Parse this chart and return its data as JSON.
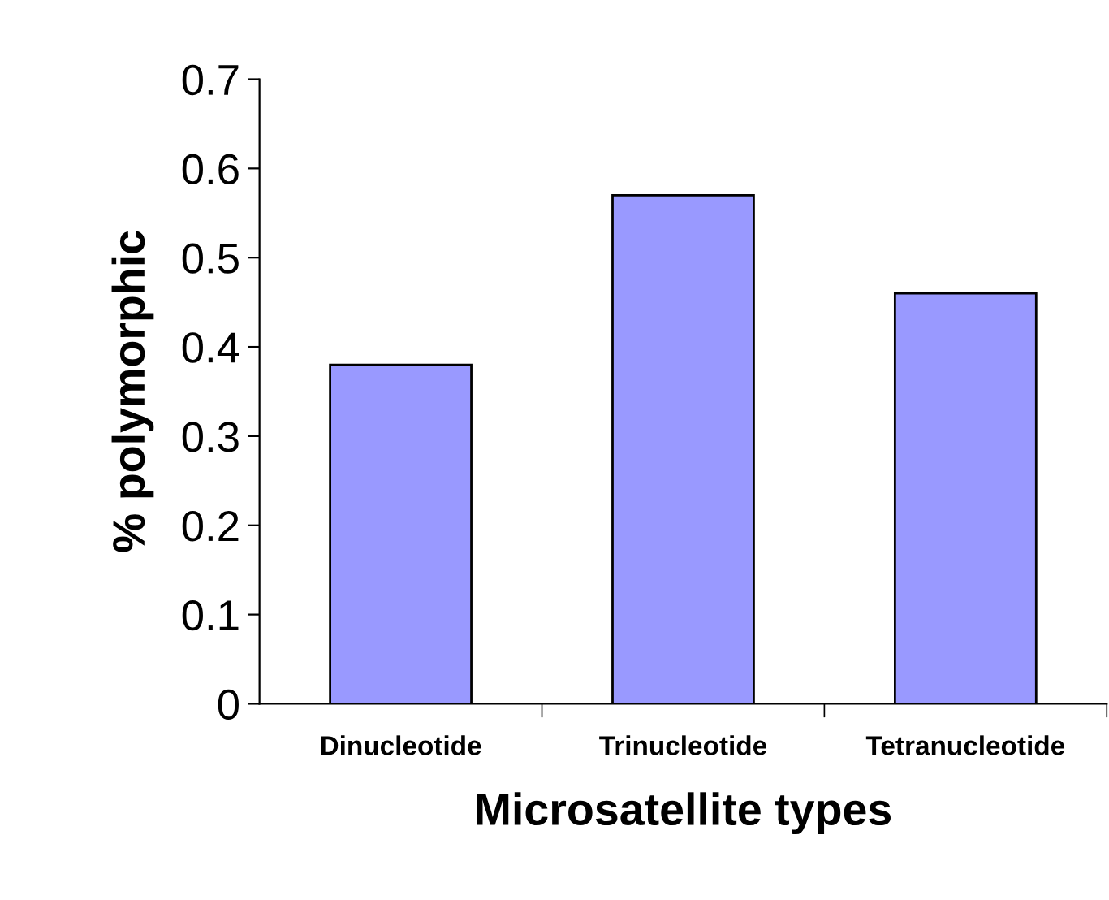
{
  "chart_data": {
    "type": "bar",
    "categories": [
      "Dinucleotide",
      "Trinucleotide",
      "Tetranucleotide"
    ],
    "values": [
      0.38,
      0.57,
      0.46
    ],
    "color": "#9999ff",
    "xlabel": "Microsatellite types",
    "ylabel": "% polymorphic",
    "ylim": [
      0,
      0.7
    ],
    "yticks": [
      0,
      0.1,
      0.2,
      0.3,
      0.4,
      0.5,
      0.6,
      0.7
    ],
    "grid": false,
    "legend": false
  }
}
